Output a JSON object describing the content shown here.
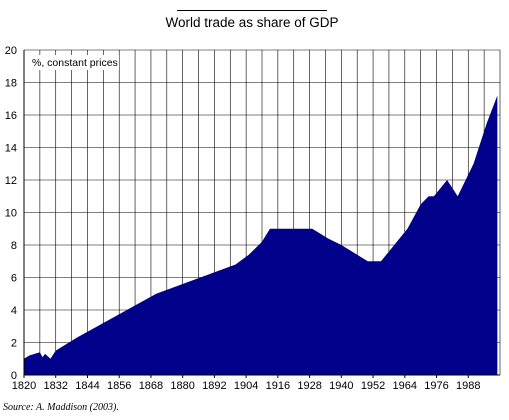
{
  "chart_data": {
    "type": "area",
    "title": "World trade as share of GDP",
    "unit_label": "%, constant prices",
    "source": "Source: A. Maddison (2003).",
    "xlabel": "",
    "ylabel": "",
    "xlim": [
      1820,
      2000
    ],
    "ylim": [
      0,
      20
    ],
    "yticks": [
      0,
      2,
      4,
      6,
      8,
      10,
      12,
      14,
      16,
      18,
      20
    ],
    "xticks": [
      1820,
      1832,
      1844,
      1856,
      1868,
      1880,
      1892,
      1904,
      1916,
      1928,
      1940,
      1952,
      1964,
      1976,
      1988
    ],
    "grid": true,
    "legend": "none",
    "fill_color": "#00008b",
    "grid_color": "#000000",
    "background_color": "#ffffff",
    "series": [
      {
        "x": [
          1820,
          1822,
          1824,
          1826,
          1827,
          1828,
          1830,
          1832,
          1840,
          1850,
          1860,
          1870,
          1880,
          1890,
          1900,
          1905,
          1910,
          1913,
          1920,
          1929,
          1935,
          1940,
          1945,
          1950,
          1955,
          1960,
          1965,
          1970,
          1973,
          1975,
          1980,
          1984,
          1990,
          1995,
          1999
        ],
        "values": [
          1.0,
          1.2,
          1.3,
          1.4,
          1.1,
          1.3,
          1.0,
          1.5,
          2.3,
          3.2,
          4.1,
          5.0,
          5.6,
          6.2,
          6.8,
          7.4,
          8.2,
          9.0,
          9.0,
          9.0,
          8.4,
          8.0,
          7.5,
          7.0,
          7.0,
          8.0,
          9.0,
          10.5,
          11.0,
          11.0,
          12.0,
          11.0,
          13.0,
          15.5,
          17.2
        ]
      }
    ]
  }
}
